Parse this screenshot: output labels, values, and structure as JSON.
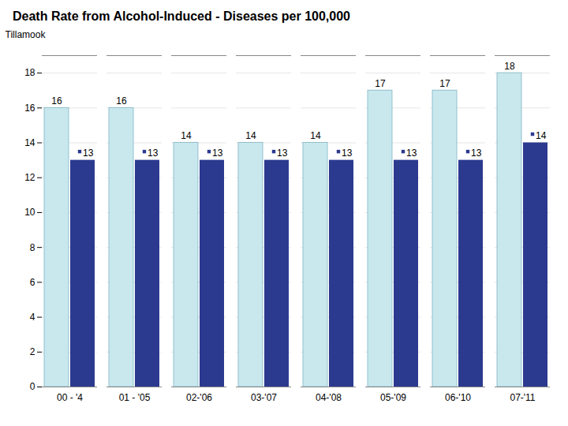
{
  "chart_data": {
    "type": "bar",
    "title": "Death Rate from Alcohol-Induced - Diseases per 100,000",
    "ylabel": "Tillamook",
    "categories": [
      "00 - '4",
      "01 - '05",
      "02-'06",
      "03-'07",
      "04-'08",
      "05-'09",
      "06-'10",
      "07-'11"
    ],
    "series": [
      {
        "color": "#c8e8ee",
        "values": [
          16,
          16,
          14,
          14,
          14,
          17,
          17,
          18
        ]
      },
      {
        "color": "#2b3a8f",
        "values": [
          13,
          13,
          13,
          13,
          13,
          13,
          13,
          14
        ]
      }
    ],
    "ylim": [
      0,
      19
    ],
    "yticks": [
      0,
      2,
      4,
      6,
      8,
      10,
      12,
      14,
      16,
      18
    ],
    "grid": true,
    "data_labels": true
  }
}
